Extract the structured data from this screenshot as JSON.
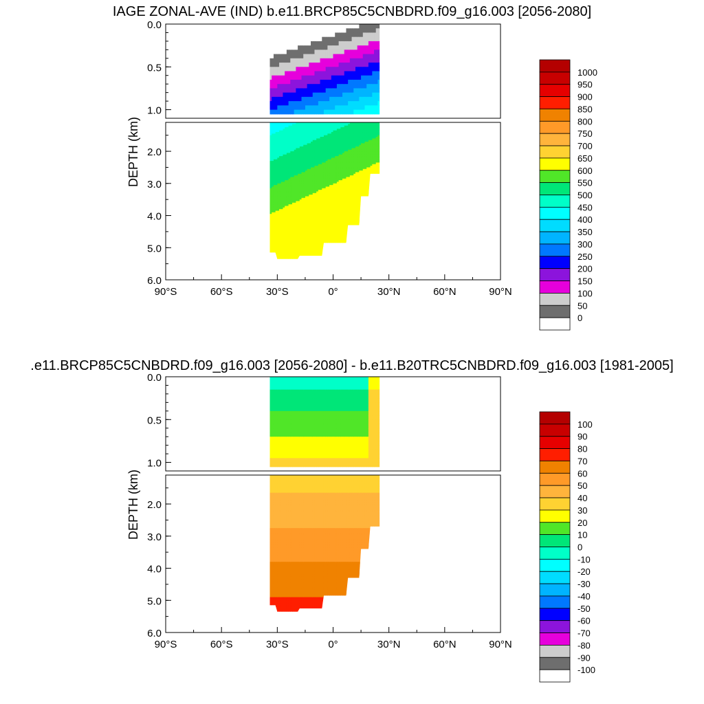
{
  "chart_data": [
    {
      "type": "heatmap",
      "title": "IAGE ZONAL-AVE (IND) b.e11.BRCP85C5CNBDRD.f09_g16.003 [2056-2080]",
      "ylabel": "DEPTH (km)",
      "xlabel": "",
      "x_ticks": [
        "90°S",
        "60°S",
        "30°S",
        "0°",
        "30°N",
        "60°N",
        "90°N"
      ],
      "x_range": [
        -90,
        90
      ],
      "upper_ylim": [
        0.0,
        1.1
      ],
      "upper_y_ticks": [
        "0.0",
        "0.5",
        "1.0"
      ],
      "lower_ylim": [
        1.1,
        6.0
      ],
      "lower_y_ticks": [
        "2.0",
        "3.0",
        "4.0",
        "5.0",
        "6.0"
      ],
      "data_extent_lat": [
        -34,
        25
      ],
      "colorbar_labels": [
        "1000",
        "950",
        "900",
        "850",
        "800",
        "750",
        "700",
        "650",
        "600",
        "550",
        "500",
        "450",
        "400",
        "350",
        "300",
        "250",
        "200",
        "150",
        "100",
        "50",
        "0"
      ],
      "colorbar_colors": [
        "#b40000",
        "#c80000",
        "#e60000",
        "#ff1e00",
        "#f08200",
        "#ff9a28",
        "#ffb43c",
        "#ffd232",
        "#ffff00",
        "#50e628",
        "#00e678",
        "#00ffc8",
        "#00ffff",
        "#00dcff",
        "#00b4ff",
        "#0078ff",
        "#0000ff",
        "#8c14dc",
        "#e600dc",
        "#cdcdcd",
        "#6e6e6e",
        "#ffffff"
      ]
    },
    {
      "type": "heatmap",
      "title": ".e11.BRCP85C5CNBDRD.f09_g16.003 [2056-2080] - b.e11.B20TRC5CNBDRD.f09_g16.003 [1981-2005]",
      "ylabel": "DEPTH (km)",
      "xlabel": "",
      "x_ticks": [
        "90°S",
        "60°S",
        "30°S",
        "0°",
        "30°N",
        "60°N",
        "90°N"
      ],
      "x_range": [
        -90,
        90
      ],
      "upper_ylim": [
        0.0,
        1.1
      ],
      "upper_y_ticks": [
        "0.0",
        "0.5",
        "1.0"
      ],
      "lower_ylim": [
        1.1,
        6.0
      ],
      "lower_y_ticks": [
        "2.0",
        "3.0",
        "4.0",
        "5.0",
        "6.0"
      ],
      "data_extent_lat": [
        -34,
        25
      ],
      "colorbar_labels": [
        "100",
        "90",
        "80",
        "70",
        "60",
        "50",
        "40",
        "30",
        "20",
        "10",
        "0",
        "-10",
        "-20",
        "-30",
        "-40",
        "-50",
        "-60",
        "-70",
        "-80",
        "-90",
        "-100"
      ],
      "colorbar_colors": [
        "#b40000",
        "#c80000",
        "#e60000",
        "#ff1e00",
        "#f08200",
        "#ff9a28",
        "#ffb43c",
        "#ffd232",
        "#ffff00",
        "#50e628",
        "#00e678",
        "#00ffc8",
        "#00ffff",
        "#00dcff",
        "#00b4ff",
        "#0078ff",
        "#0000ff",
        "#8c14dc",
        "#e600dc",
        "#cdcdcd",
        "#6e6e6e",
        "#ffffff"
      ]
    }
  ]
}
